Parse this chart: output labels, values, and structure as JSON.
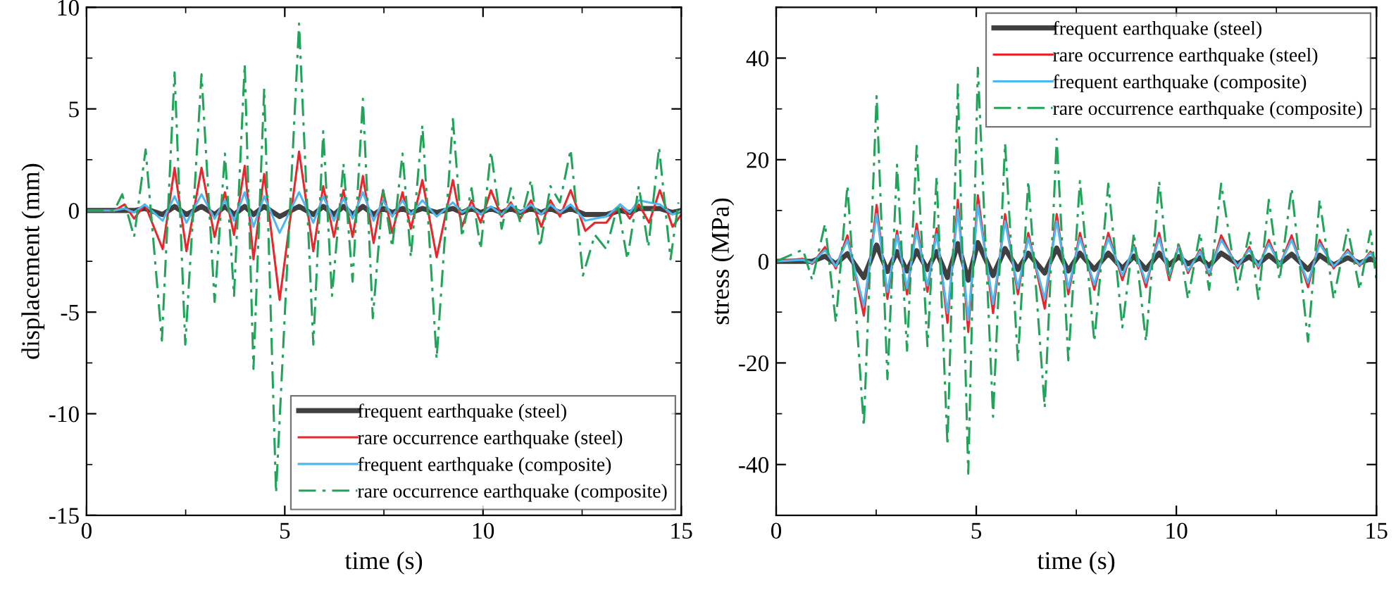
{
  "chart_data": [
    {
      "type": "line",
      "xlabel": "time (s)",
      "ylabel": "displacement (mm)",
      "xlim": [
        0,
        15
      ],
      "ylim": [
        -15,
        10
      ],
      "xticks": [
        0,
        5,
        10,
        15
      ],
      "yticks": [
        -15,
        -10,
        -5,
        0,
        5,
        10
      ],
      "grid": false,
      "legend": "bottom right",
      "marker": "none",
      "x": [
        0,
        0.7,
        0.96,
        1.2,
        1.47,
        1.92,
        2.22,
        2.52,
        2.9,
        3.23,
        3.49,
        3.72,
        3.99,
        4.21,
        4.48,
        4.87,
        5.36,
        5.72,
        5.97,
        6.24,
        6.48,
        6.71,
        6.97,
        7.24,
        7.48,
        7.71,
        7.97,
        8.18,
        8.47,
        8.83,
        9.24,
        9.47,
        9.71,
        9.94,
        10.2,
        10.47,
        10.7,
        10.94,
        11.21,
        11.47,
        11.7,
        11.94,
        12.21,
        12.58,
        12.82,
        13.11,
        13.46,
        13.7,
        13.93,
        14.19,
        14.46,
        14.78,
        15.0
      ],
      "series": [
        {
          "name": "frequent earthquake (steel)",
          "color": "#404040",
          "line_style": "solid",
          "values": [
            0,
            0,
            0,
            0,
            0.1,
            -0.2,
            0.2,
            -0.2,
            0.2,
            -0.2,
            0.2,
            -0.2,
            0.2,
            -0.2,
            0.2,
            -0.3,
            0.2,
            -0.2,
            0.2,
            -0.2,
            0.2,
            -0.2,
            0.2,
            -0.2,
            0.1,
            -0.1,
            0.1,
            -0.1,
            0.1,
            -0.1,
            0.1,
            -0.1,
            0.1,
            -0.1,
            0.1,
            -0.1,
            0.1,
            -0.1,
            0.1,
            -0.1,
            0.1,
            -0.1,
            0.1,
            -0.2,
            -0.2,
            -0.2,
            0,
            -0.1,
            0.1,
            0.1,
            0.1,
            -0.1,
            0
          ]
        },
        {
          "name": "rare occurrence earthquake (steel)",
          "color": "#e8262b",
          "line_style": "solid",
          "values": [
            0,
            0,
            0.3,
            -0.4,
            0.3,
            -1.9,
            2.1,
            -2.0,
            2.1,
            -1.3,
            0.9,
            -1.2,
            2.2,
            -2.4,
            1.8,
            -4.4,
            2.9,
            -2.0,
            1.2,
            -1.3,
            1.0,
            -1.3,
            1.7,
            -1.6,
            1.0,
            -1.1,
            0.9,
            -0.9,
            1.5,
            -2.3,
            1.5,
            -0.8,
            0.5,
            -0.6,
            1.0,
            -0.3,
            0.4,
            -0.4,
            0.5,
            -0.8,
            0.5,
            -0.3,
            1.0,
            -1.0,
            -0.6,
            -0.6,
            0.3,
            -0.4,
            0.3,
            -0.6,
            1.0,
            -0.8,
            -0.2
          ]
        },
        {
          "name": "frequent earthquake (composite)",
          "color": "#4db8f0",
          "line_style": "solid",
          "values": [
            0,
            0,
            0.1,
            -0.1,
            0.3,
            -0.5,
            0.7,
            -0.6,
            0.8,
            -0.4,
            0.5,
            -0.5,
            0.9,
            -0.8,
            0.7,
            -1.1,
            0.9,
            -0.6,
            0.7,
            -0.5,
            0.6,
            -0.4,
            0.9,
            -0.5,
            0.5,
            -0.3,
            0.5,
            -0.2,
            0.5,
            -0.3,
            0.4,
            -0.1,
            0.2,
            -0.2,
            0.2,
            -0.2,
            0.3,
            -0.1,
            0.3,
            -0.2,
            0.3,
            -0.1,
            0.3,
            -0.5,
            -0.4,
            -0.3,
            0.3,
            -0.1,
            0.5,
            0.4,
            0.3,
            -0.2,
            0
          ]
        },
        {
          "name": "rare occurrence earthquake (composite)",
          "color": "#21a35a",
          "line_style": "dashdot",
          "x": [
            0,
            0.7,
            0.9,
            1.2,
            1.49,
            1.9,
            2.22,
            2.49,
            2.9,
            3.23,
            3.49,
            3.72,
            3.99,
            4.21,
            4.48,
            4.78,
            5.36,
            5.72,
            5.97,
            6.19,
            6.48,
            6.71,
            6.97,
            7.22,
            7.48,
            7.71,
            7.97,
            8.18,
            8.47,
            8.83,
            9.24,
            9.47,
            9.71,
            9.94,
            10.2,
            10.47,
            10.7,
            10.94,
            11.21,
            11.44,
            11.7,
            11.94,
            12.21,
            12.52,
            12.82,
            13.11,
            13.4,
            13.64,
            13.93,
            14.17,
            14.44,
            14.73,
            14.93
          ],
          "values": [
            0,
            0,
            0.8,
            -1.3,
            3.0,
            -6.4,
            6.8,
            -6.6,
            6.7,
            -4.5,
            2.8,
            -4.2,
            7.2,
            -7.8,
            6.0,
            -13.9,
            9.2,
            -6.6,
            3.9,
            -4.2,
            2.3,
            -3.5,
            5.5,
            -5.3,
            1.0,
            -1.8,
            2.8,
            -2.3,
            4.2,
            -7.3,
            4.5,
            -1.3,
            1.1,
            -1.9,
            2.9,
            -0.9,
            1.1,
            -0.6,
            1.5,
            -1.8,
            1.2,
            0.4,
            3.0,
            -3.2,
            -1.2,
            -1.9,
            0.3,
            -2.4,
            1.2,
            -1.8,
            3.1,
            -2.4,
            0.4
          ]
        }
      ]
    },
    {
      "type": "line",
      "xlabel": "time (s)",
      "ylabel": "stress (MPa)",
      "xlim": [
        0,
        15
      ],
      "ylim": [
        -50,
        50
      ],
      "xticks": [
        0,
        5,
        10,
        15
      ],
      "yticks": [
        -40,
        -20,
        0,
        20,
        40
      ],
      "grid": false,
      "legend": "top right",
      "marker": "none",
      "x": [
        0,
        0.67,
        0.9,
        1.22,
        1.49,
        1.78,
        2.19,
        2.51,
        2.78,
        3.02,
        3.27,
        3.51,
        3.78,
        4.01,
        4.28,
        4.54,
        4.8,
        5.04,
        5.42,
        5.72,
        6.04,
        6.3,
        6.71,
        7.01,
        7.3,
        7.59,
        7.95,
        8.3,
        8.65,
        8.94,
        9.24,
        9.57,
        9.82,
        10.06,
        10.29,
        10.59,
        10.82,
        11.12,
        11.53,
        11.82,
        12.05,
        12.31,
        12.58,
        12.88,
        13.29,
        13.58,
        13.93,
        14.28,
        14.58,
        14.85,
        15.0
      ],
      "series": [
        {
          "name": "frequent earthquake (steel)",
          "color": "#404040",
          "line_style": "solid",
          "values": [
            0,
            0,
            0,
            1.0,
            -0.5,
            1.5,
            -3.2,
            3.2,
            -2.0,
            1.9,
            -1.9,
            2.1,
            -1.6,
            1.9,
            -3.2,
            3.5,
            -3.7,
            3.7,
            -2.8,
            2.5,
            -1.6,
            1.6,
            -2.3,
            2.6,
            -1.9,
            1.6,
            -1.6,
            1.6,
            -1.4,
            1.0,
            -1.6,
            1.6,
            -0.7,
            0.9,
            -0.5,
            0.7,
            -0.9,
            1.6,
            -0.5,
            0.9,
            -0.5,
            1.2,
            -0.5,
            1.4,
            -1.6,
            1.2,
            -0.7,
            0.7,
            -0.3,
            0.5,
            0
          ]
        },
        {
          "name": "rare occurrence earthquake (steel)",
          "color": "#e8262b",
          "line_style": "solid",
          "values": [
            0,
            0.5,
            -0.5,
            2.8,
            -1.4,
            5.1,
            -10.7,
            11.1,
            -7.4,
            6.0,
            -6.5,
            7.4,
            -6.0,
            6.5,
            -12.1,
            12.1,
            -13.9,
            13.0,
            -10.2,
            9.3,
            -6.5,
            5.6,
            -9.3,
            9.3,
            -6.5,
            5.6,
            -5.6,
            5.6,
            -3.7,
            3.2,
            -5.1,
            5.6,
            -3.7,
            3.2,
            -2.3,
            2.3,
            -2.8,
            5.1,
            -1.4,
            2.8,
            -1.4,
            4.2,
            -0.9,
            5.1,
            -5.1,
            4.2,
            -1.4,
            2.3,
            -0.9,
            1.9,
            0
          ]
        },
        {
          "name": "frequent earthquake (composite)",
          "color": "#4db8f0",
          "line_style": "solid",
          "values": [
            0,
            0.3,
            -0.3,
            2.2,
            -1.0,
            4.2,
            -8.8,
            9.3,
            -6.0,
            5.1,
            -5.3,
            6.0,
            -4.8,
            5.3,
            -10.2,
            10.2,
            -11.6,
            11.1,
            -8.4,
            7.9,
            -5.3,
            4.6,
            -7.4,
            7.9,
            -5.3,
            4.6,
            -4.6,
            4.6,
            -2.8,
            2.8,
            -4.2,
            4.6,
            -2.8,
            2.8,
            -1.9,
            1.9,
            -2.3,
            4.2,
            -1.0,
            2.3,
            -1.0,
            3.5,
            -0.7,
            4.2,
            -4.2,
            3.5,
            -1.0,
            1.9,
            -0.7,
            1.6,
            0
          ]
        },
        {
          "name": "rare occurrence earthquake (composite)",
          "color": "#21a35a",
          "line_style": "dashdot",
          "values": [
            0,
            2.3,
            -3.7,
            7.4,
            -12,
            14.9,
            -32.5,
            32.5,
            -23.2,
            19.0,
            -17.6,
            22.7,
            -16.7,
            16.7,
            -36.2,
            34.8,
            -41.8,
            38.1,
            -30.6,
            23.2,
            -19.5,
            15.8,
            -28.8,
            24.1,
            -19.5,
            15.8,
            -15.8,
            15.3,
            -13.0,
            5.6,
            -15.8,
            15.8,
            -3.7,
            3.7,
            -7.4,
            5.6,
            -5.6,
            15.3,
            -5.6,
            5.6,
            -7.4,
            12.1,
            -3.7,
            14.4,
            -15.8,
            12.1,
            -7.4,
            6.5,
            -5.6,
            6.0,
            -3.7
          ]
        }
      ]
    }
  ]
}
